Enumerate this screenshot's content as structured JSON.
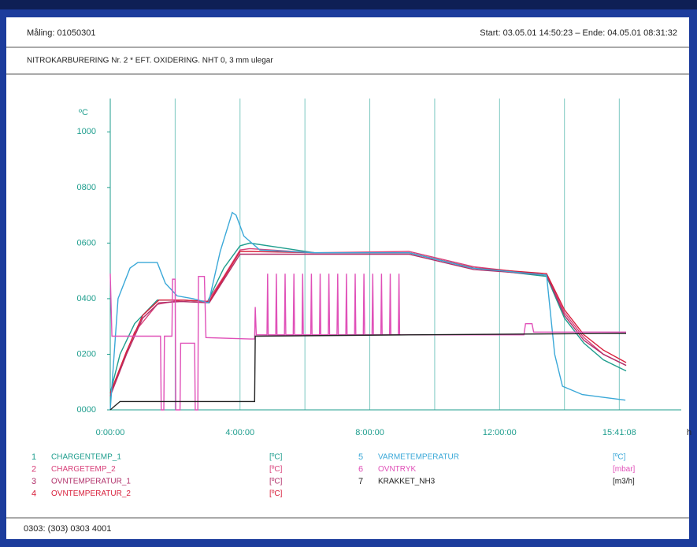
{
  "header": {
    "measurement": "Måling: 01050301",
    "period": "Start: 03.05.01 14:50:23 – Ende: 04.05.01 08:31:32",
    "description": "NITROKARBURERING Nr. 2 * EFT. OXIDERING. NHT 0, 3 mm ulegar"
  },
  "footer": "0303: (303) 0303 4001",
  "chart_data": {
    "type": "line",
    "y_unit": "ºC",
    "x_unit": "h",
    "xlim": [
      0,
      17.6
    ],
    "ylim": [
      0,
      1120
    ],
    "xticks": [
      {
        "value": 0,
        "label": "0:00:00"
      },
      {
        "value": 4,
        "label": "4:00:00"
      },
      {
        "value": 8,
        "label": "8:00:00"
      },
      {
        "value": 12,
        "label": "12:00:00"
      },
      {
        "value": 15.69,
        "label": "15:41:08"
      }
    ],
    "xgrid": [
      2,
      6,
      10,
      14
    ],
    "yticks": [
      {
        "value": 0,
        "label": "0000"
      },
      {
        "value": 200,
        "label": "0200"
      },
      {
        "value": 400,
        "label": "0400"
      },
      {
        "value": 600,
        "label": "0600"
      },
      {
        "value": 800,
        "label": "0800"
      },
      {
        "value": 1000,
        "label": "1000"
      }
    ],
    "series": [
      {
        "number": "1",
        "name": "CHARGENTEMP_1",
        "unit": "[ºC]",
        "color": "#1f9e8e",
        "x": [
          0,
          0.3,
          0.75,
          1.45,
          2.2,
          3.0,
          3.5,
          4.0,
          4.3,
          6.3,
          9.2,
          11.2,
          13.45,
          14.0,
          14.6,
          15.2,
          15.9
        ],
        "values": [
          60,
          200,
          310,
          395,
          395,
          390,
          510,
          590,
          600,
          565,
          565,
          510,
          480,
          330,
          240,
          180,
          140
        ]
      },
      {
        "number": "2",
        "name": "CHARGETEMP_2",
        "unit": "[ºC]",
        "color": "#d8407a",
        "x": [
          0,
          0.3,
          0.75,
          1.45,
          2.2,
          3.0,
          3.5,
          4.0,
          4.3,
          6.3,
          9.2,
          11.2,
          13.45,
          14.0,
          14.6,
          15.2,
          15.9
        ],
        "values": [
          50,
          150,
          280,
          380,
          395,
          390,
          480,
          575,
          580,
          565,
          570,
          515,
          485,
          350,
          260,
          200,
          160
        ]
      },
      {
        "number": "3",
        "name": "OVNTEMPERATUR_1",
        "unit": "[ºC]",
        "color": "#b0306a",
        "x": [
          0,
          0.5,
          1.0,
          1.5,
          2.2,
          3.05,
          4.0,
          4.3,
          6.3,
          9.2,
          11.2,
          13.45,
          14.0,
          14.6,
          15.2,
          15.9
        ],
        "values": [
          50,
          200,
          330,
          385,
          390,
          385,
          560,
          560,
          560,
          560,
          505,
          485,
          340,
          250,
          200,
          160
        ]
      },
      {
        "number": "4",
        "name": "OVNTEMPERATUR_2",
        "unit": "[ºC]",
        "color": "#d8203c",
        "x": [
          0,
          0.5,
          1.0,
          1.5,
          2.2,
          3.05,
          4.0,
          4.3,
          6.3,
          9.2,
          11.2,
          13.45,
          14.0,
          14.6,
          15.2,
          15.9
        ],
        "values": [
          60,
          210,
          340,
          395,
          395,
          390,
          570,
          570,
          565,
          565,
          510,
          490,
          360,
          270,
          215,
          170
        ]
      },
      {
        "number": "5",
        "name": "VARMETEMPERATUR",
        "unit": "[ºC]",
        "color": "#3aa8d8",
        "x": [
          0,
          0.24,
          0.61,
          0.85,
          1.45,
          1.7,
          2.06,
          2.55,
          3.03,
          3.39,
          3.76,
          3.88,
          4.12,
          4.61,
          6.3,
          9.21,
          11.15,
          13.45,
          13.7,
          13.94,
          14.55,
          15.88
        ],
        "values": [
          0,
          400,
          510,
          530,
          530,
          455,
          410,
          400,
          385,
          570,
          710,
          700,
          625,
          575,
          565,
          565,
          510,
          485,
          200,
          85,
          55,
          35
        ]
      },
      {
        "number": "6",
        "name": "OVNTRYK",
        "unit": "[mbar]",
        "color": "#e050b8",
        "x": [
          0,
          0.05,
          1.55,
          1.57,
          1.65,
          1.67,
          1.9,
          1.92,
          2.0,
          2.02,
          2.15,
          2.17,
          2.6,
          2.62,
          2.7,
          2.72,
          2.9,
          2.95,
          4.3,
          4.45,
          4.47,
          4.5,
          4.83,
          4.85,
          4.87,
          5.1,
          5.12,
          5.14,
          5.37,
          5.39,
          5.41,
          5.64,
          5.66,
          5.68,
          5.91,
          5.93,
          5.95,
          6.18,
          6.2,
          6.22,
          6.45,
          6.47,
          6.49,
          6.72,
          6.74,
          6.76,
          6.99,
          7.01,
          7.03,
          7.26,
          7.28,
          7.3,
          7.53,
          7.55,
          7.57,
          7.8,
          7.82,
          7.84,
          8.07,
          8.09,
          8.11,
          8.34,
          8.36,
          8.38,
          8.61,
          8.63,
          8.65,
          8.88,
          8.9,
          8.92,
          12.75,
          12.8,
          13.0,
          13.05,
          15.9
        ],
        "values": [
          490,
          265,
          265,
          0,
          0,
          265,
          265,
          470,
          470,
          0,
          0,
          240,
          240,
          0,
          0,
          480,
          480,
          260,
          255,
          255,
          370,
          270,
          270,
          490,
          270,
          270,
          490,
          270,
          270,
          490,
          270,
          270,
          490,
          270,
          270,
          490,
          270,
          270,
          490,
          270,
          270,
          490,
          270,
          270,
          490,
          270,
          270,
          490,
          270,
          270,
          490,
          270,
          270,
          490,
          270,
          270,
          490,
          270,
          270,
          490,
          270,
          270,
          490,
          270,
          270,
          490,
          270,
          270,
          490,
          270,
          270,
          310,
          310,
          280,
          280
        ]
      },
      {
        "number": "7",
        "name": "KRAKKET_NH3",
        "unit": "[m3/h]",
        "color": "#222222",
        "x": [
          0,
          0.3,
          4.45,
          4.47,
          9.2,
          15.9
        ],
        "values": [
          0,
          30,
          30,
          265,
          270,
          275
        ]
      }
    ]
  }
}
